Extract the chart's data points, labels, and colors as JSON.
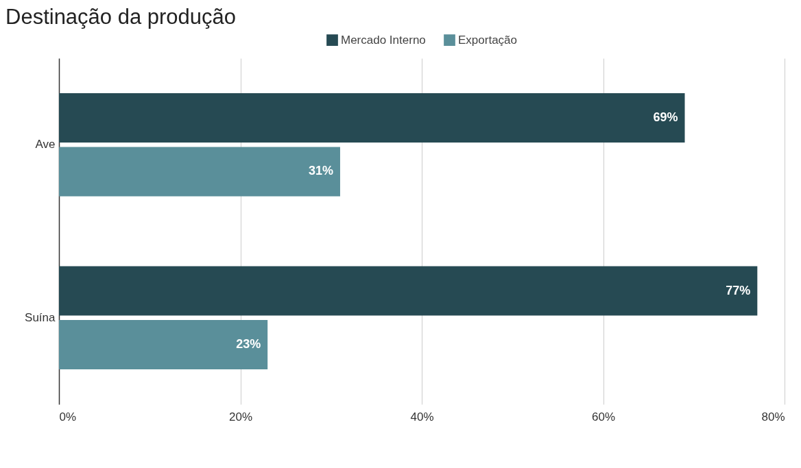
{
  "chart_data": {
    "type": "bar",
    "orientation": "horizontal",
    "title": "Destinação da produção",
    "categories": [
      "Ave",
      "Suína"
    ],
    "series": [
      {
        "name": "Mercado Interno",
        "color": "#264a53",
        "values": [
          69,
          77
        ],
        "value_labels": [
          "69%",
          "77%"
        ]
      },
      {
        "name": "Exportação",
        "color": "#5a8f9a",
        "values": [
          31,
          23
        ],
        "value_labels": [
          "31%",
          "23%"
        ]
      }
    ],
    "xlim": [
      0,
      80
    ],
    "xticks": [
      {
        "value": 0,
        "label": "0%"
      },
      {
        "value": 20,
        "label": "20%"
      },
      {
        "value": 40,
        "label": "40%"
      },
      {
        "value": 60,
        "label": "60%"
      },
      {
        "value": 80,
        "label": "80%"
      }
    ],
    "grid": "x",
    "legend": "top"
  }
}
